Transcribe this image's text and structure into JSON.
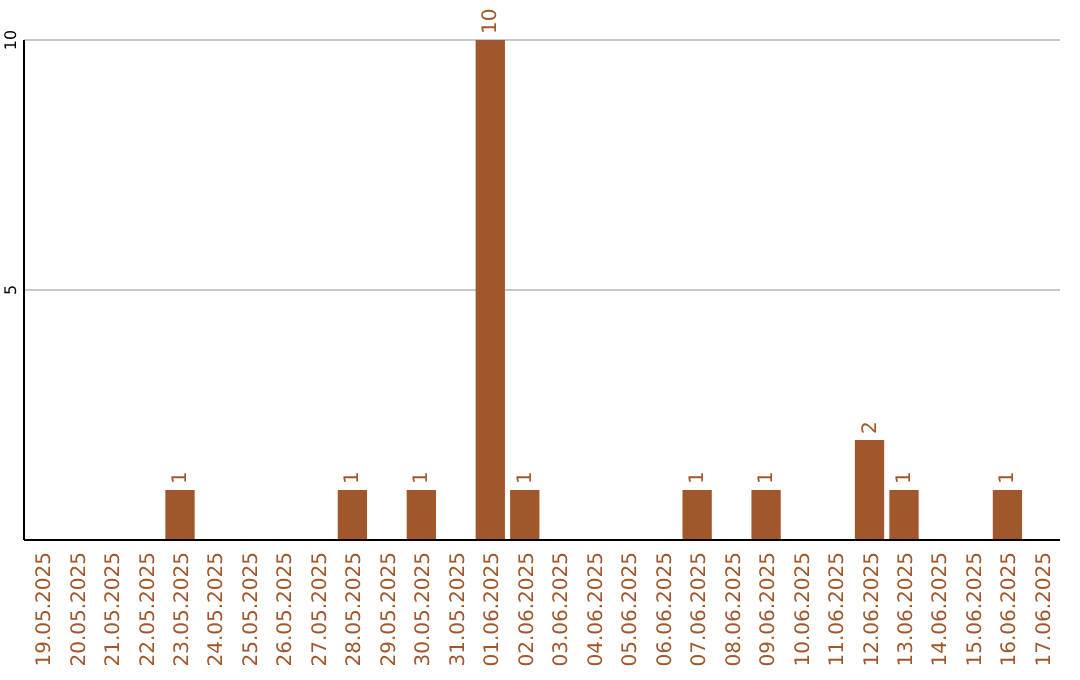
{
  "chart_data": {
    "type": "bar",
    "categories": [
      "19.05.2025",
      "20.05.2025",
      "21.05.2025",
      "22.05.2025",
      "23.05.2025",
      "24.05.2025",
      "25.05.2025",
      "26.05.2025",
      "27.05.2025",
      "28.05.2025",
      "29.05.2025",
      "30.05.2025",
      "31.05.2025",
      "01.06.2025",
      "02.06.2025",
      "03.06.2025",
      "04.06.2025",
      "05.06.2025",
      "06.06.2025",
      "07.06.2025",
      "08.06.2025",
      "09.06.2025",
      "10.06.2025",
      "11.06.2025",
      "12.06.2025",
      "13.06.2025",
      "14.06.2025",
      "15.06.2025",
      "16.06.2025",
      "17.06.2025"
    ],
    "values": [
      0,
      0,
      0,
      0,
      1,
      0,
      0,
      0,
      0,
      1,
      0,
      1,
      0,
      10,
      1,
      0,
      0,
      0,
      0,
      1,
      0,
      1,
      0,
      0,
      2,
      1,
      0,
      0,
      1,
      0
    ],
    "value_labels": [
      null,
      null,
      null,
      null,
      "1",
      null,
      null,
      null,
      null,
      "1",
      null,
      "1",
      null,
      "10",
      "1",
      null,
      null,
      null,
      null,
      "1",
      null,
      "1",
      null,
      null,
      "2",
      "1",
      null,
      null,
      "1",
      null
    ],
    "color": "#a0572b",
    "ylim": [
      0,
      10
    ],
    "yticks": [
      5,
      10
    ],
    "grid": "y"
  }
}
